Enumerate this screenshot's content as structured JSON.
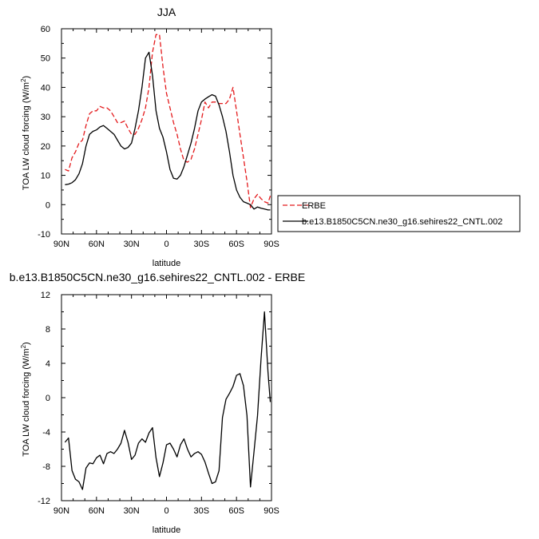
{
  "chart_data": [
    {
      "type": "line",
      "title": "JJA",
      "xlabel": "latitude",
      "ylabel": "TOA LW cloud forcing (W/m²)",
      "ylabel_base": "TOA LW cloud forcing (W/m",
      "ylabel_sup": "2",
      "ylabel_close": ")",
      "xlim": [
        90,
        -90
      ],
      "ylim": [
        -10,
        60
      ],
      "xticks": [
        90,
        60,
        30,
        0,
        -30,
        -60,
        -90
      ],
      "xtick_labels": [
        "90N",
        "60N",
        "30N",
        "0",
        "30S",
        "60S",
        "90S"
      ],
      "yticks": [
        -10,
        0,
        10,
        20,
        30,
        40,
        50,
        60
      ],
      "ytick_labels": [
        "-10",
        "0",
        "10",
        "20",
        "30",
        "40",
        "50",
        "60"
      ],
      "legend_position": "right",
      "series": [
        {
          "name": "ERBE",
          "color": "#e41a1c",
          "dash": "dashed",
          "x": [
            87,
            84,
            81,
            78,
            75,
            72,
            69,
            66,
            63,
            60,
            57,
            54,
            51,
            48,
            45,
            42,
            39,
            36,
            33,
            30,
            27,
            24,
            21,
            18,
            15,
            12,
            9,
            6,
            3,
            0,
            -3,
            -6,
            -9,
            -12,
            -15,
            -18,
            -21,
            -24,
            -27,
            -30,
            -33,
            -36,
            -39,
            -42,
            -45,
            -48,
            -51,
            -54,
            -57,
            -60,
            -63,
            -66,
            -69,
            -72,
            -75,
            -78,
            -81,
            -84,
            -87,
            -89
          ],
          "y": [
            12,
            11.5,
            16,
            18,
            21,
            22,
            27,
            31,
            32,
            32,
            33.5,
            33,
            33,
            32,
            30,
            28,
            28,
            28.5,
            26,
            24,
            24,
            26,
            29,
            33,
            40,
            52,
            58,
            58,
            47,
            38,
            33,
            28,
            24,
            19,
            15,
            14.5,
            15.5,
            19,
            24,
            29,
            35,
            33,
            35,
            35,
            34.5,
            34.5,
            34.5,
            36,
            40,
            32,
            24,
            16,
            8,
            -1,
            2,
            3.5,
            2,
            1,
            0.5,
            3
          ]
        },
        {
          "name": "b.e13.B1850C5CN.ne30_g16.sehires22_CNTL.002",
          "color": "#000000",
          "dash": "solid",
          "x": [
            87,
            84,
            81,
            78,
            75,
            72,
            69,
            66,
            63,
            60,
            57,
            54,
            51,
            48,
            45,
            42,
            39,
            36,
            33,
            30,
            27,
            24,
            21,
            18,
            15,
            12,
            9,
            6,
            3,
            0,
            -3,
            -6,
            -9,
            -12,
            -15,
            -18,
            -21,
            -24,
            -27,
            -30,
            -33,
            -36,
            -39,
            -42,
            -45,
            -48,
            -51,
            -54,
            -57,
            -60,
            -63,
            -66,
            -69,
            -72,
            -75,
            -78,
            -81,
            -84,
            -87,
            -89
          ],
          "y": [
            6.8,
            7,
            7.5,
            8.5,
            10.5,
            14,
            20,
            24,
            25,
            25.5,
            26.5,
            27,
            26,
            25,
            24,
            22,
            20,
            19,
            19.5,
            21,
            26,
            32,
            40,
            50,
            52,
            44,
            32,
            26,
            23,
            18,
            12,
            9,
            8.7,
            10,
            13,
            17,
            21,
            26,
            32,
            35,
            36,
            36.8,
            37.5,
            37,
            34,
            30,
            25,
            18,
            10,
            5,
            2.5,
            1,
            0.5,
            0,
            -1.5,
            -0.8,
            -1.2,
            -1.5,
            -1.8,
            -1.8
          ]
        }
      ]
    },
    {
      "type": "line",
      "title": "b.e13.B1850C5CN.ne30_g16.sehires22_CNTL.002 - ERBE",
      "xlabel": "latitude",
      "ylabel": "TOA LW cloud forcing (W/m²)",
      "ylabel_base": "TOA LW cloud forcing (W/m",
      "ylabel_sup": "2",
      "ylabel_close": ")",
      "xlim": [
        90,
        -90
      ],
      "ylim": [
        -12,
        12
      ],
      "xticks": [
        90,
        60,
        30,
        0,
        -30,
        -60,
        -90
      ],
      "xtick_labels": [
        "90N",
        "60N",
        "30N",
        "0",
        "30S",
        "60S",
        "90S"
      ],
      "yticks": [
        -12,
        -8,
        -4,
        0,
        4,
        8,
        12
      ],
      "ytick_labels": [
        "-12",
        "-8",
        "-4",
        "0",
        "4",
        "8",
        "12"
      ],
      "series": [
        {
          "color": "#000000",
          "dash": "solid",
          "x": [
            87,
            84,
            81,
            78,
            75,
            72,
            69,
            66,
            63,
            60,
            57,
            54,
            51,
            48,
            45,
            42,
            39,
            36,
            33,
            30,
            27,
            24,
            21,
            18,
            15,
            12,
            9,
            6,
            3,
            0,
            -3,
            -6,
            -9,
            -12,
            -15,
            -18,
            -21,
            -24,
            -27,
            -30,
            -33,
            -36,
            -39,
            -42,
            -45,
            -48,
            -51,
            -54,
            -57,
            -60,
            -63,
            -66,
            -69,
            -72,
            -75,
            -78,
            -81,
            -84,
            -87,
            -89
          ],
          "y": [
            -5.2,
            -4.7,
            -8.5,
            -9.5,
            -9.8,
            -10.7,
            -8.2,
            -7.6,
            -7.7,
            -7.0,
            -6.7,
            -7.7,
            -6.5,
            -6.3,
            -6.5,
            -6.0,
            -5.3,
            -3.8,
            -5.2,
            -7.2,
            -6.7,
            -5.3,
            -4.8,
            -5.2,
            -4.1,
            -3.5,
            -7.0,
            -9.2,
            -7.6,
            -5.5,
            -5.3,
            -6.0,
            -6.9,
            -5.5,
            -4.8,
            -6.0,
            -6.9,
            -6.5,
            -6.3,
            -6.6,
            -7.5,
            -8.8,
            -10.0,
            -9.8,
            -8.5,
            -2.3,
            -0.2,
            0.5,
            1.3,
            2.6,
            2.8,
            1.4,
            -2.1,
            -10.4,
            -6.3,
            -2.1,
            4.5,
            10.0,
            3.0,
            -0.5
          ]
        }
      ]
    }
  ]
}
